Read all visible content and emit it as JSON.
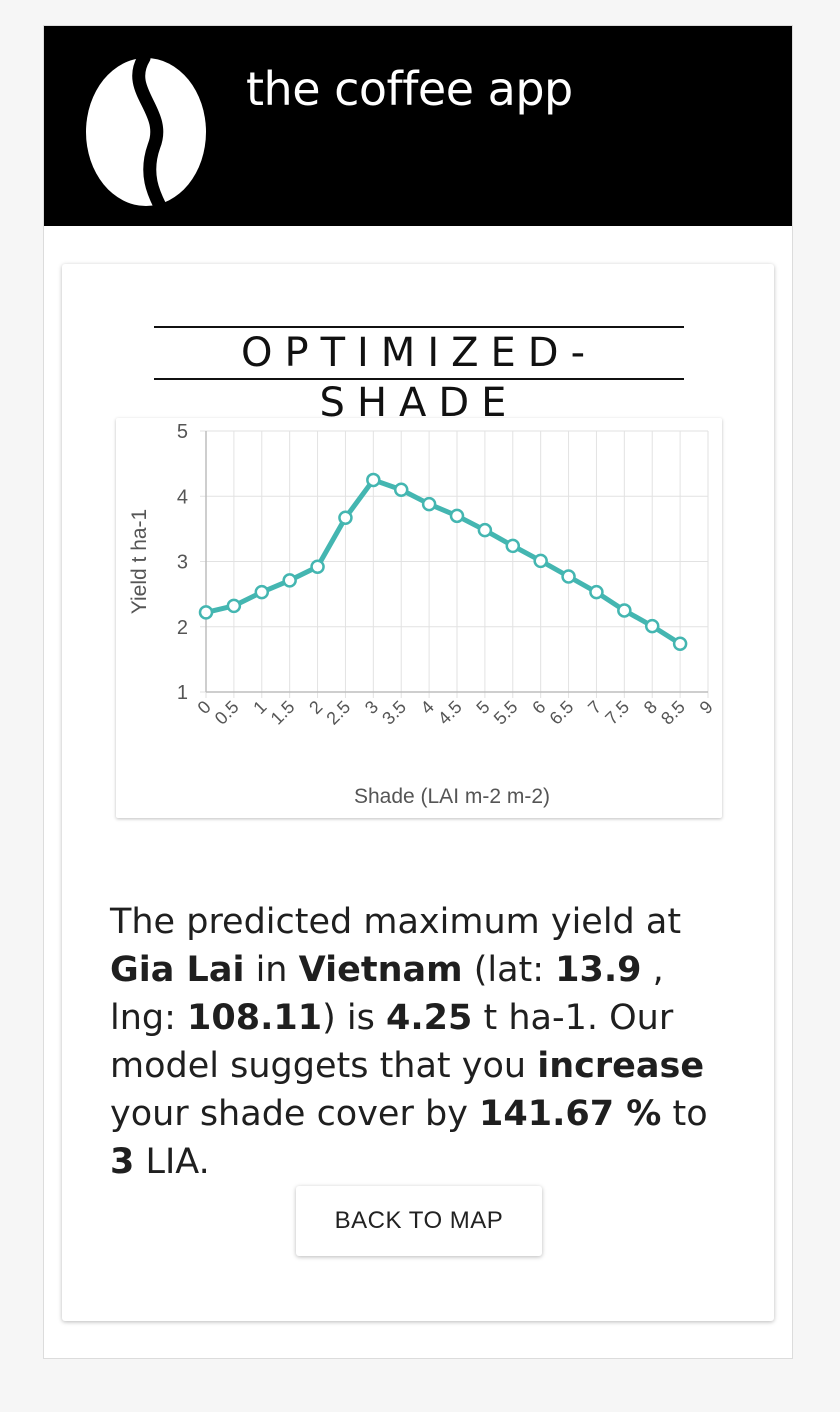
{
  "app": {
    "title": "the coffee app",
    "logo_icon": "coffee-bean-icon"
  },
  "card": {
    "title": "OPTIMIZED-SHADE"
  },
  "chart_data": {
    "type": "line",
    "title": "",
    "xlabel": "Shade (LAI m-2 m-2)",
    "ylabel": "Yield t ha-1",
    "categories": [
      "0",
      "0.5",
      "1",
      "1.5",
      "2",
      "2.5",
      "3",
      "3.5",
      "4",
      "4.5",
      "5",
      "5.5",
      "6",
      "6.5",
      "7",
      "7.5",
      "8",
      "8.5",
      "9"
    ],
    "x": [
      0,
      0.5,
      1,
      1.5,
      2,
      2.5,
      3,
      3.5,
      4,
      4.5,
      5,
      5.5,
      6,
      6.5,
      7,
      7.5,
      8,
      8.5
    ],
    "values": [
      2.22,
      2.32,
      2.53,
      2.71,
      2.92,
      3.67,
      4.25,
      4.1,
      3.88,
      3.7,
      3.48,
      3.24,
      3.01,
      2.77,
      2.53,
      2.25,
      2.01,
      1.74
    ],
    "ylim": [
      1,
      5
    ],
    "yticks": [
      "1",
      "2",
      "3",
      "4",
      "5"
    ],
    "grid": true,
    "line_color": "#44b6b1"
  },
  "result": {
    "intro": "The predicted maximum yield at ",
    "region": "Gia Lai",
    "in": " in ",
    "country": "Vietnam",
    "lat_label": " (lat: ",
    "lat": "13.9",
    "lng_label": " , lng: ",
    "lng": "108.11",
    "is": ") is ",
    "yield": "4.25",
    "unit_text": " t ha-1. Our model suggets that you ",
    "action": "increase",
    "cover_text": " your shade cover by ",
    "percent": "141.67 %",
    "to": " to ",
    "target": "3",
    "end": " LIA."
  },
  "buttons": {
    "back_label": "BACK TO MAP"
  }
}
